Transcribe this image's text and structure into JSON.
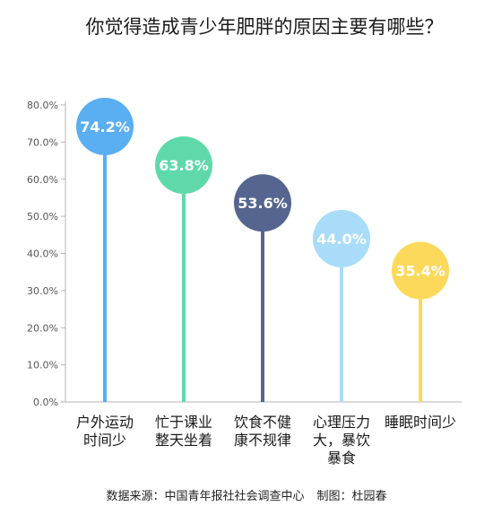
{
  "title": "你觉得造成青少年肥胖的原因主要有哪些？",
  "source": {
    "data_source": "数据来源：中国青年报社社会调查中心",
    "made_by": "制图：杜园春"
  },
  "chart_data": {
    "type": "lollipop",
    "title": "你觉得造成青少年肥胖的原因主要有哪些？",
    "categories": [
      [
        "户外运动",
        "时间少"
      ],
      [
        "忙于课业",
        "整天坐着"
      ],
      [
        "饮食不健",
        "康不规律"
      ],
      [
        "心理压力",
        "大，暴饮",
        "暴食"
      ],
      [
        "睡眠时间少"
      ]
    ],
    "values": [
      74.2,
      63.8,
      53.6,
      44.0,
      35.4
    ],
    "value_labels": [
      "74.2%",
      "63.8%",
      "53.6%",
      "44.0%",
      "35.4%"
    ],
    "colors": [
      "#5aaef2",
      "#5fd9a9",
      "#56658f",
      "#a8dcfa",
      "#fdd95b"
    ],
    "ylim": [
      0,
      80
    ],
    "yticks": [
      0,
      10,
      20,
      30,
      40,
      50,
      60,
      70,
      80
    ],
    "ytick_labels": [
      "0.0%",
      "10.0%",
      "20.0%",
      "30.0%",
      "40.0%",
      "50.0%",
      "60.0%",
      "70.0%",
      "80.0%"
    ],
    "grid": false,
    "legend": "none"
  }
}
